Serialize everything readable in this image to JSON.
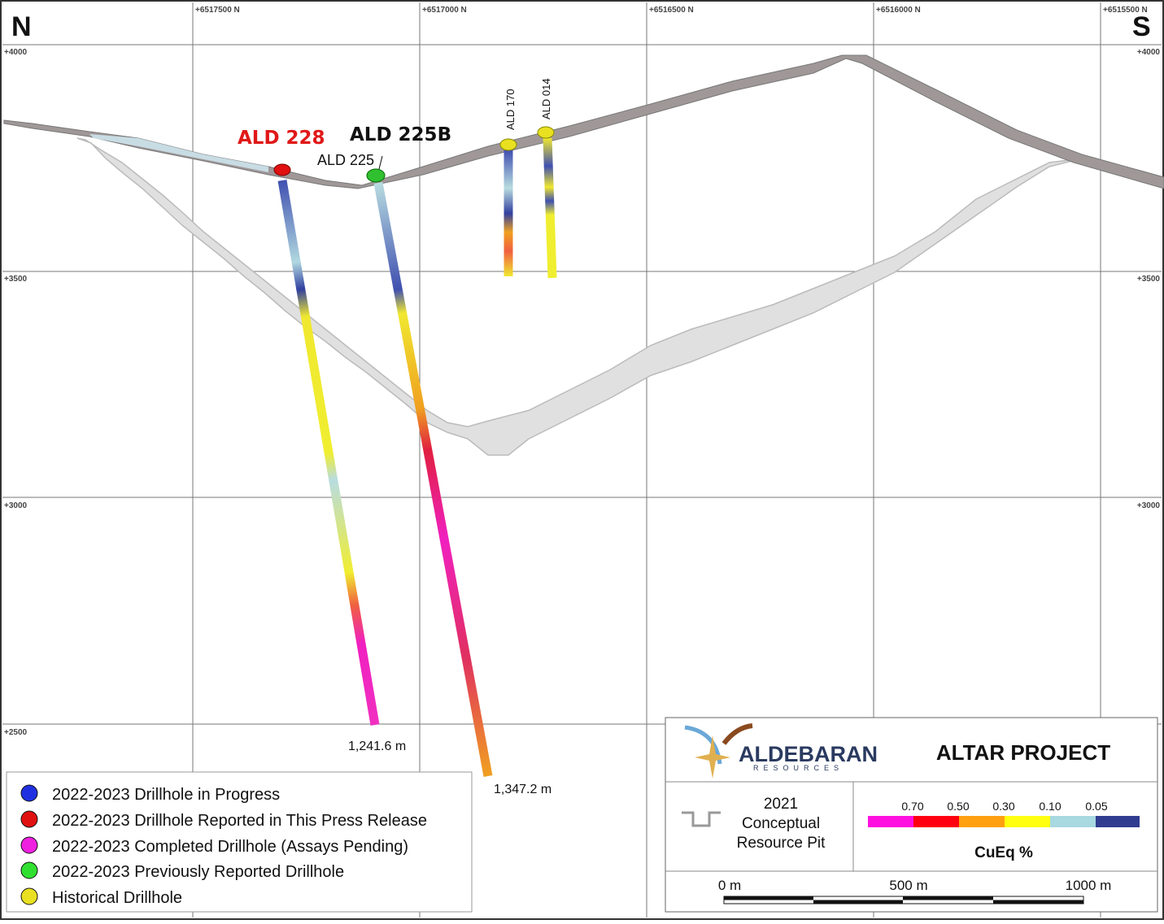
{
  "compass": {
    "north": "N",
    "south": "S"
  },
  "northings": [
    "+6517500 N",
    "+6517000 N",
    "+6516500 N",
    "+6516000 N",
    "+6515500 N"
  ],
  "elevations": [
    "+4000",
    "+3500",
    "+3000",
    "+2500"
  ],
  "drillholes": [
    {
      "label": "ALD 228",
      "depth": "1,241.6 m"
    },
    {
      "label": "ALD 225B",
      "depth": "1,347.2 m"
    },
    {
      "label": "ALD 225"
    },
    {
      "label": "ALD 170"
    },
    {
      "label": "ALD 014"
    }
  ],
  "legend": [
    "2022-2023 Drillhole in Progress",
    "2022-2023 Drillhole Reported in This Press Release",
    "2022-2023 Completed Drillhole (Assays Pending)",
    "2022-2023 Previously Reported Drillhole",
    "Historical Drillhole"
  ],
  "title_block": {
    "logo": "ALDEBARAN",
    "logo_sub": "RESOURCES",
    "project": "ALTAR PROJECT",
    "pit_label": [
      "2021",
      "Conceptual",
      "Resource Pit"
    ],
    "grade_ticks": [
      "0.70",
      "0.50",
      "0.30",
      "0.10",
      "0.05"
    ],
    "grade_unit": "CuEq %",
    "distance_ticks": [
      "0 m",
      "500 m",
      "1000 m"
    ]
  }
}
